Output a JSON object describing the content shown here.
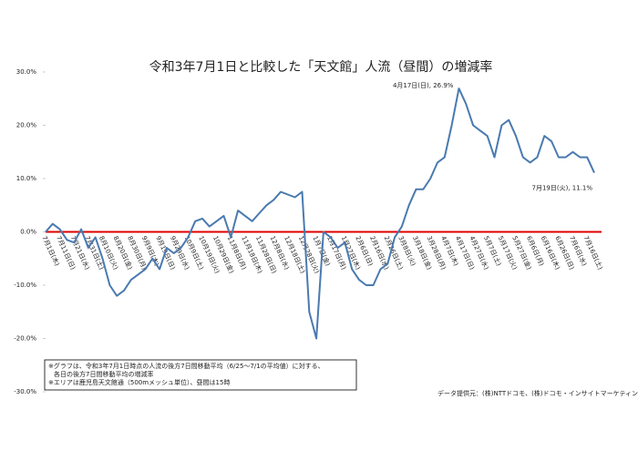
{
  "chart_data": {
    "type": "line",
    "title": "令和3年7月1日と比較した「天文館」人流（昼間）の増減率",
    "categories": [
      "7月1日(木)",
      null,
      "7月11日(日)",
      null,
      "7月21日(水)",
      null,
      "7月31日(土)",
      null,
      "8月10日(火)",
      null,
      "8月20日(金)",
      null,
      "8月30日(月)",
      null,
      "9月9日(木)",
      null,
      "9月19日(日)",
      null,
      "9月29日(水)",
      null,
      "10月9日(土)",
      null,
      "10月19日(火)",
      null,
      "10月29日(金)",
      null,
      "11月8日(月)",
      null,
      "11月18日(木)",
      null,
      "11月28日(日)",
      null,
      "12月8日(水)",
      null,
      "12月18日(土)",
      null,
      "12月28日(火)",
      null,
      "1月7日(金)",
      null,
      "1月17日(月)",
      null,
      "1月27日(木)",
      null,
      "2月6日(日)",
      null,
      "2月16日(水)",
      null,
      "2月26日(土)",
      null,
      "3月8日(火)",
      null,
      "3月18日(金)",
      null,
      "3月28日(月)",
      null,
      "4月7日(木)",
      null,
      "4月17日(日)",
      null,
      "4月27日(水)",
      null,
      "5月7日(土)",
      null,
      "5月17日(火)",
      null,
      "5月27日(金)",
      null,
      "6月6日(月)",
      null,
      "6月16日(木)",
      null,
      "6月26日(日)",
      null,
      "7月6日(水)",
      null,
      "7月16日(土)",
      null
    ],
    "series": [
      {
        "color": "#4a7ab0",
        "values": [
          0,
          1.5,
          0.5,
          -1.5,
          -2,
          0.5,
          -3,
          -1,
          -5,
          -10,
          -12,
          -11,
          -9,
          -8,
          -7,
          -5,
          -7,
          -3,
          -4,
          -3,
          -1,
          2,
          2.5,
          1,
          2,
          3,
          -1,
          4,
          3,
          2,
          3.5,
          5,
          6,
          7.5,
          7,
          6.5,
          7.5,
          -15,
          -20,
          0,
          -1,
          -3,
          -2,
          -7,
          -9,
          -10,
          -10,
          -7,
          -6,
          -1,
          1,
          5,
          8,
          8,
          10,
          13,
          14,
          20,
          26.9,
          24,
          20,
          19,
          18,
          14,
          20,
          21,
          18,
          14,
          13,
          14,
          18,
          17,
          14,
          14,
          15,
          14,
          14,
          11.1
        ]
      }
    ],
    "ylim": [
      -30,
      30
    ],
    "yticks": [
      {
        "value": -30,
        "label": "-30.0%"
      },
      {
        "value": -20,
        "label": "-20.0%"
      },
      {
        "value": -10,
        "label": "-10.0%"
      },
      {
        "value": 0,
        "label": "0.0%"
      },
      {
        "value": 10,
        "label": "10.0%"
      },
      {
        "value": 20,
        "label": "20.0%"
      },
      {
        "value": 30,
        "label": "30.0%"
      }
    ],
    "zero_line": {
      "value": 0,
      "color": "#e00000"
    },
    "annotations": [
      {
        "text": "4月17日(日), 26.9%",
        "index": 58
      },
      {
        "text": "7月19日(火), 11.1%",
        "index": 77
      }
    ],
    "notes": [
      "※グラフは、令和3年7月1日時点の人流の後方7日間移動平均（6/25～7/1の平均値）に対する、",
      "各日の後方7日間移動平均の増減率",
      "※エリアは鹿児島天文館通（500mメッシュ単位）、昼間は15時"
    ],
    "source": "データ提供元：(株)NTTドコモ、(株)ドコモ・インサイトマーケティング"
  }
}
